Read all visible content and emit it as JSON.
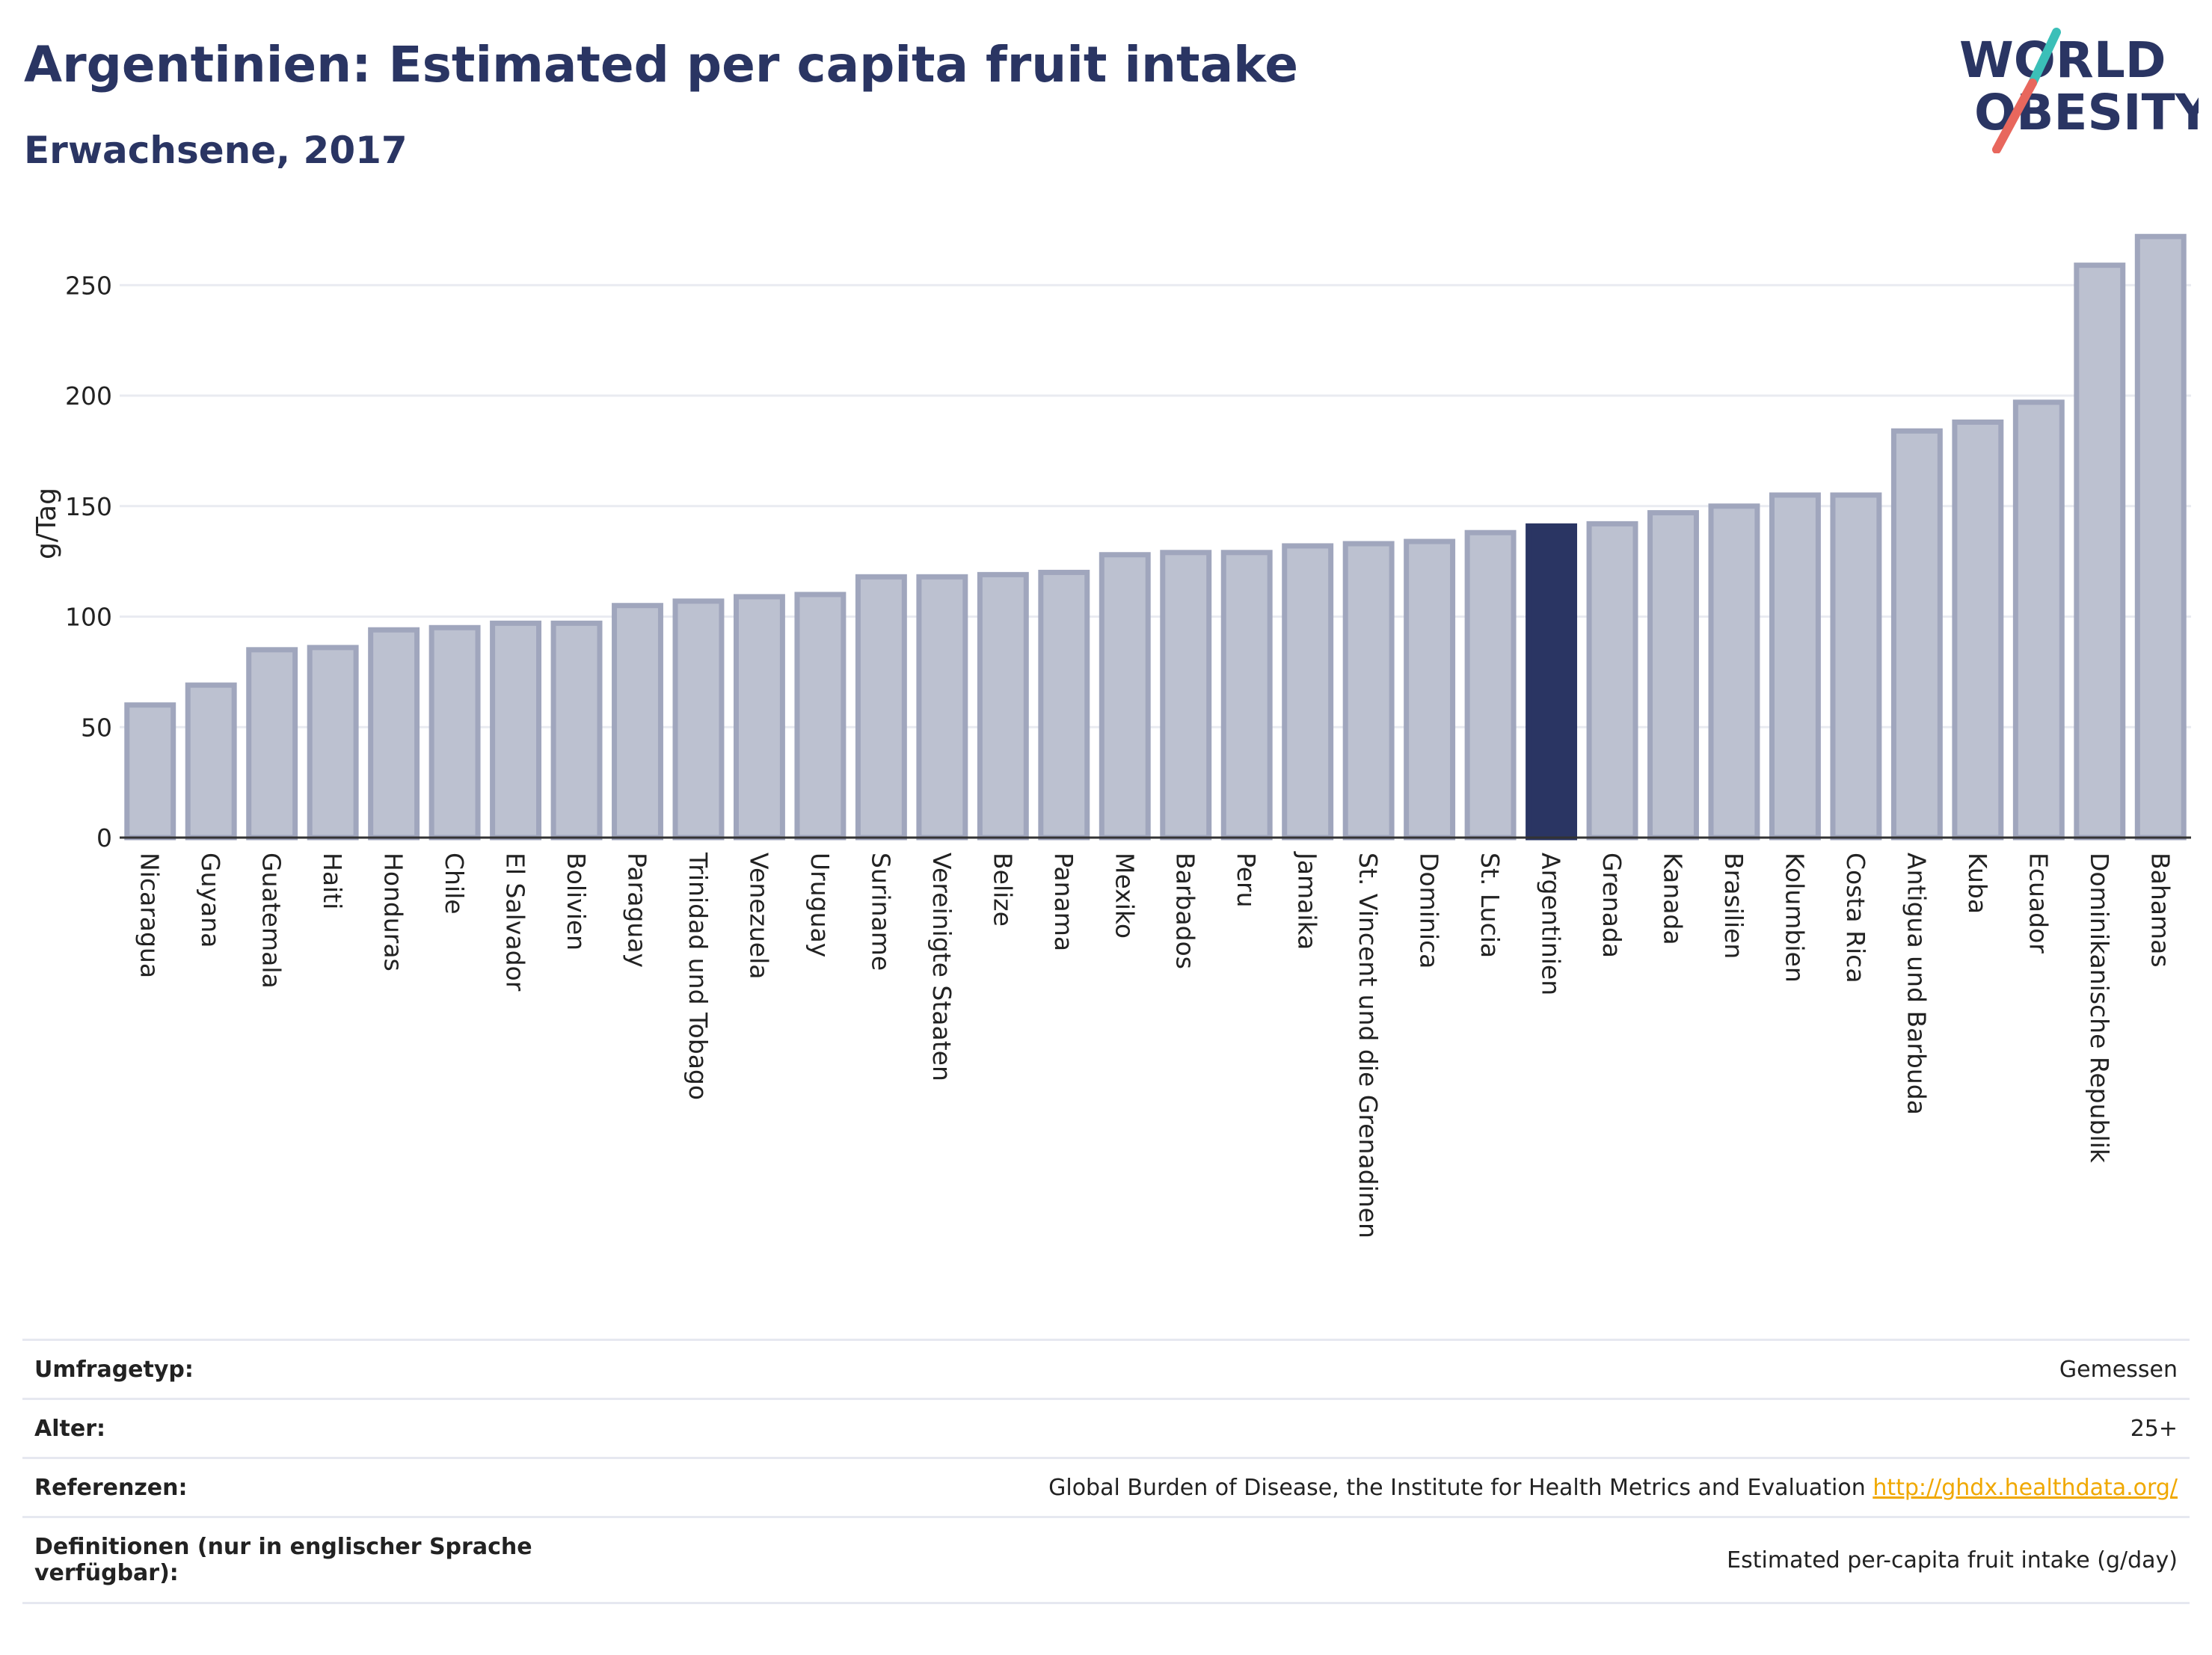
{
  "header": {
    "title": "Argentinien: Estimated per capita fruit intake",
    "subtitle": "Erwachsene, 2017"
  },
  "logo": {
    "line1": "WORLD",
    "line2": "OBESITY",
    "colors": {
      "text": "#2a3563",
      "slash_top": "#3bbfb8",
      "slash_bottom": "#e8675d"
    }
  },
  "chart_data": {
    "type": "bar",
    "ylabel": "g/Tag",
    "ylim": [
      0,
      275
    ],
    "yticks": [
      0,
      50,
      100,
      150,
      200,
      250
    ],
    "grid": true,
    "highlight": "Argentinien",
    "colors": {
      "bar": "#bcc1d0",
      "bar_edge": "#a0a6bd",
      "highlight": "#2a3563"
    },
    "categories": [
      "Nicaragua",
      "Guyana",
      "Guatemala",
      "Haiti",
      "Honduras",
      "Chile",
      "El Salvador",
      "Bolivien",
      "Paraguay",
      "Trinidad und Tobago",
      "Venezuela",
      "Uruguay",
      "Suriname",
      "Vereinigte Staaten",
      "Belize",
      "Panama",
      "Mexiko",
      "Barbados",
      "Peru",
      "Jamaika",
      "St. Vincent und die Grenadinen",
      "Dominica",
      "St. Lucia",
      "Argentinien",
      "Grenada",
      "Kanada",
      "Brasilien",
      "Kolumbien",
      "Costa Rica",
      "Antigua und Barbuda",
      "Kuba",
      "Ecuador",
      "Dominikanische Republik",
      "Bahamas"
    ],
    "values": [
      60,
      69,
      85,
      86,
      94,
      95,
      97,
      97,
      105,
      107,
      109,
      110,
      118,
      118,
      119,
      120,
      128,
      129,
      129,
      132,
      133,
      134,
      138,
      141,
      142,
      147,
      150,
      155,
      155,
      184,
      188,
      197,
      259,
      272
    ]
  },
  "info": {
    "rows": [
      {
        "label": "Umfragetyp:",
        "value": "Gemessen"
      },
      {
        "label": "Alter:",
        "value": "25+"
      },
      {
        "label": "Referenzen:",
        "value": "Global Burden of Disease, the Institute for Health Metrics and Evaluation",
        "link": "http://ghdx.healthdata.org/"
      },
      {
        "label": "Definitionen (nur in englischer Sprache verfügbar):",
        "value": "Estimated per-capita fruit intake (g/day)"
      }
    ]
  }
}
